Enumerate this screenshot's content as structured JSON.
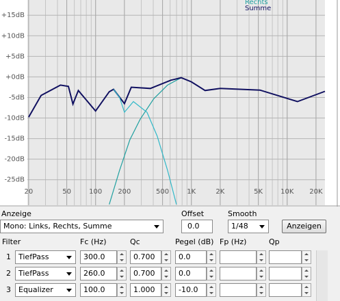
{
  "chart_data": {
    "type": "line",
    "xscale": "log",
    "xlim": [
      19.4,
      24800
    ],
    "ylim": [
      -31.2,
      18.7
    ],
    "xticks": [
      20,
      50,
      100,
      200,
      500,
      {
        "value": 1000,
        "label": "1K"
      },
      {
        "value": 2000,
        "label": "2K"
      },
      {
        "value": 5000,
        "label": "5K"
      },
      {
        "value": 10000,
        "label": "10K"
      },
      {
        "value": 20000,
        "label": "20K"
      }
    ],
    "yticks": [
      {
        "value": 15,
        "label": "+15dB"
      },
      {
        "value": 10,
        "label": "+10dB"
      },
      {
        "value": 5,
        "label": "+5dB"
      },
      {
        "value": 0,
        "label": "+0dB"
      },
      {
        "value": -5,
        "label": "-5dB"
      },
      {
        "value": -10,
        "label": "-10dB"
      },
      {
        "value": -15,
        "label": "-15dB"
      },
      {
        "value": -20,
        "label": "-20dB"
      },
      {
        "value": -25,
        "label": "-25dB"
      }
    ],
    "grid": true,
    "series": [
      {
        "name": "Rechts",
        "color": "#20a0a0",
        "x": [
          139,
          178,
          228,
          292,
          405,
          564,
          784
        ],
        "values": [
          -31,
          -22.7,
          -15.3,
          -10.3,
          -5.3,
          -2.0,
          -0.2
        ]
      },
      {
        "name": "Summe",
        "color": "#101060",
        "x": [
          20,
          27,
          43,
          52,
          58,
          66,
          100,
          139,
          154,
          200,
          236,
          373,
          612,
          784,
          1000,
          1390,
          2000,
          5200,
          12800,
          24800
        ],
        "values": [
          -9.8,
          -4.5,
          -2.0,
          -2.3,
          -6.6,
          -3.3,
          -8.3,
          -3.6,
          -3.0,
          -6.5,
          -2.5,
          -2.8,
          -0.8,
          -0.2,
          -1.2,
          -3.3,
          -2.8,
          -3.2,
          -6.0,
          -3.5
        ]
      },
      {
        "color": "#30b8c8",
        "x": [
          154,
          178,
          200,
          248,
          344,
          440,
          564,
          698
        ],
        "values": [
          -3.0,
          -5.0,
          -8.6,
          -6.0,
          -8.6,
          -14.4,
          -22.7,
          -31
        ]
      }
    ]
  },
  "controls": {
    "anzeige": {
      "label": "Anzeige",
      "value": "Mono: Links, Rechts, Summe"
    },
    "offset": {
      "label": "Offset",
      "value": "0.0"
    },
    "smooth": {
      "label": "Smooth",
      "value": "1/48"
    },
    "button": "Anzeigen"
  },
  "filters": {
    "headers": [
      "Filter",
      "Fc (Hz)",
      "Qc",
      "Pegel (dB)",
      "Fp (Hz)",
      "Qp"
    ],
    "rows": [
      {
        "index": 1,
        "type": "TiefPass",
        "fc": "300.0",
        "qc": "0.700",
        "pegel": "0.0"
      },
      {
        "index": 2,
        "type": "TiefPass",
        "fc": "260.0",
        "qc": "0.700",
        "pegel": "0.0"
      },
      {
        "index": 3,
        "type": "Equalizer",
        "fc": "100.0",
        "qc": "1.000",
        "pegel": "-10.0"
      }
    ]
  }
}
